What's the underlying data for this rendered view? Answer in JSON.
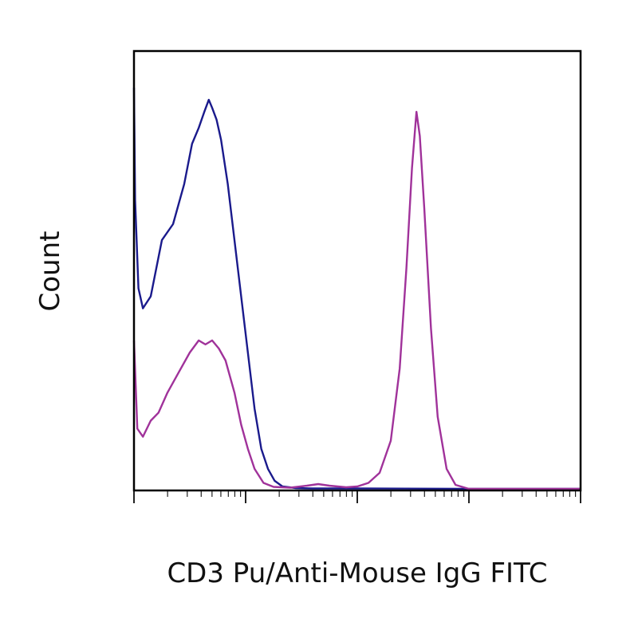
{
  "chart_data": {
    "type": "line",
    "title": "",
    "xlabel": "CD3 Pu/Anti-Mouse IgG FITC",
    "ylabel": "Count",
    "x_scale": "log",
    "xlim": [
      0,
      4
    ],
    "ylim": [
      0,
      100
    ],
    "grid": false,
    "legend": "none",
    "x_tick_decades": [
      0,
      1,
      2,
      3,
      4
    ],
    "series": [
      {
        "color": "#1a1a8c",
        "points": [
          [
            0.0,
            100
          ],
          [
            0.01,
            72
          ],
          [
            0.04,
            50
          ],
          [
            0.08,
            45
          ],
          [
            0.15,
            48
          ],
          [
            0.25,
            62
          ],
          [
            0.35,
            66
          ],
          [
            0.45,
            76
          ],
          [
            0.52,
            86
          ],
          [
            0.58,
            90
          ],
          [
            0.63,
            94
          ],
          [
            0.67,
            97
          ],
          [
            0.7,
            95
          ],
          [
            0.74,
            92
          ],
          [
            0.78,
            87
          ],
          [
            0.84,
            76
          ],
          [
            0.9,
            62
          ],
          [
            0.96,
            48
          ],
          [
            1.02,
            34
          ],
          [
            1.08,
            20
          ],
          [
            1.14,
            10
          ],
          [
            1.2,
            5
          ],
          [
            1.26,
            2
          ],
          [
            1.33,
            0.6
          ],
          [
            1.45,
            0.2
          ],
          [
            1.6,
            0.1
          ],
          [
            2.0,
            0.1
          ],
          [
            3.0,
            0
          ],
          [
            4.0,
            0
          ]
        ]
      },
      {
        "color": "#a0329a",
        "points": [
          [
            0.0,
            37
          ],
          [
            0.03,
            15
          ],
          [
            0.08,
            13
          ],
          [
            0.15,
            17
          ],
          [
            0.22,
            19
          ],
          [
            0.3,
            24
          ],
          [
            0.4,
            29
          ],
          [
            0.5,
            34
          ],
          [
            0.58,
            37
          ],
          [
            0.64,
            36
          ],
          [
            0.7,
            37
          ],
          [
            0.76,
            35
          ],
          [
            0.82,
            32
          ],
          [
            0.9,
            24
          ],
          [
            0.96,
            16
          ],
          [
            1.02,
            10
          ],
          [
            1.08,
            5
          ],
          [
            1.16,
            1.5
          ],
          [
            1.25,
            0.5
          ],
          [
            1.4,
            0.3
          ],
          [
            1.55,
            0.8
          ],
          [
            1.65,
            1.2
          ],
          [
            1.75,
            0.8
          ],
          [
            1.9,
            0.4
          ],
          [
            2.0,
            0.6
          ],
          [
            2.1,
            1.5
          ],
          [
            2.2,
            4
          ],
          [
            2.3,
            12
          ],
          [
            2.38,
            30
          ],
          [
            2.44,
            55
          ],
          [
            2.49,
            80
          ],
          [
            2.53,
            94
          ],
          [
            2.56,
            88
          ],
          [
            2.6,
            70
          ],
          [
            2.66,
            40
          ],
          [
            2.72,
            18
          ],
          [
            2.8,
            5
          ],
          [
            2.88,
            1
          ],
          [
            3.0,
            0
          ],
          [
            4.0,
            0
          ]
        ]
      }
    ]
  }
}
